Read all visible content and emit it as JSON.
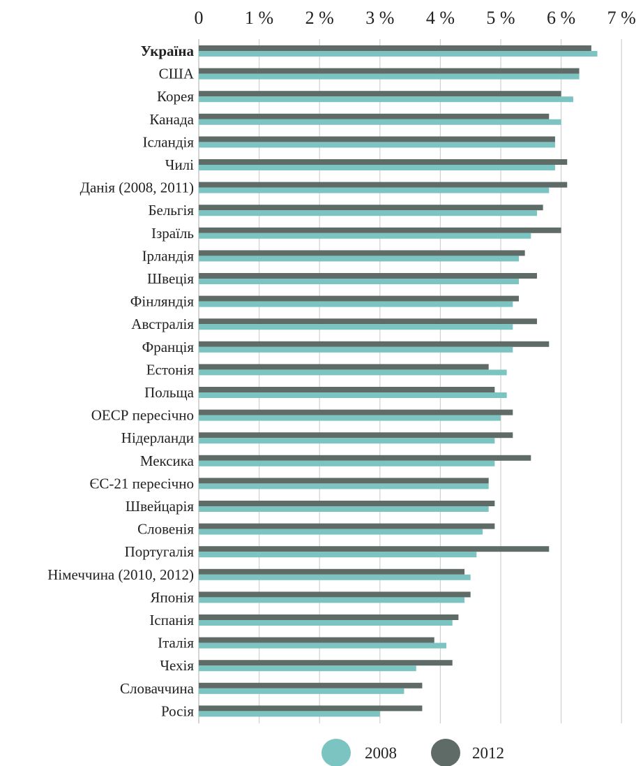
{
  "chart_data": {
    "type": "bar",
    "orientation": "horizontal",
    "title": "",
    "xlabel": "",
    "ylabel": "",
    "xlim": [
      0,
      7
    ],
    "x_ticks": [
      "0",
      "1 %",
      "2 %",
      "3 %",
      "4 %",
      "5 %",
      "6 %",
      "7 %"
    ],
    "x_tick_values": [
      0,
      1,
      2,
      3,
      4,
      5,
      6,
      7
    ],
    "grid": true,
    "legend_position": "bottom",
    "highlight_category": "Україна",
    "categories": [
      "Україна",
      "США",
      "Корея",
      "Канада",
      "Ісландія",
      "Чилі",
      "Данія (2008, 2011)",
      "Бельгія",
      "Ізраїль",
      "Ірландія",
      "Швеція",
      "Фінляндія",
      "Австралія",
      "Франція",
      "Естонія",
      "Польща",
      "ОЕСР пересічно",
      "Нідерланди",
      "Мексика",
      "ЄС-21 пересічно",
      "Швейцарія",
      "Словенія",
      "Португалія",
      "Німеччина (2010, 2012)",
      "Японія",
      "Іспанія",
      "Італія",
      "Чехія",
      "Словаччина",
      "Росія"
    ],
    "series": [
      {
        "name": "2008",
        "color": "#7cc4c1",
        "values": [
          6.6,
          6.3,
          6.2,
          6.0,
          5.9,
          5.9,
          5.8,
          5.6,
          5.5,
          5.3,
          5.3,
          5.2,
          5.2,
          5.2,
          5.1,
          5.1,
          5.0,
          4.9,
          4.9,
          4.8,
          4.8,
          4.7,
          4.6,
          4.5,
          4.4,
          4.2,
          4.1,
          3.6,
          3.4,
          3.0
        ]
      },
      {
        "name": "2012",
        "color": "#5f6b66",
        "values": [
          6.5,
          6.3,
          6.0,
          5.8,
          5.9,
          6.1,
          6.1,
          5.7,
          6.0,
          5.4,
          5.6,
          5.3,
          5.6,
          5.8,
          4.8,
          4.9,
          5.2,
          5.2,
          5.5,
          4.8,
          4.9,
          4.9,
          5.8,
          4.4,
          4.5,
          4.3,
          3.9,
          4.2,
          3.7,
          3.7
        ]
      }
    ]
  }
}
